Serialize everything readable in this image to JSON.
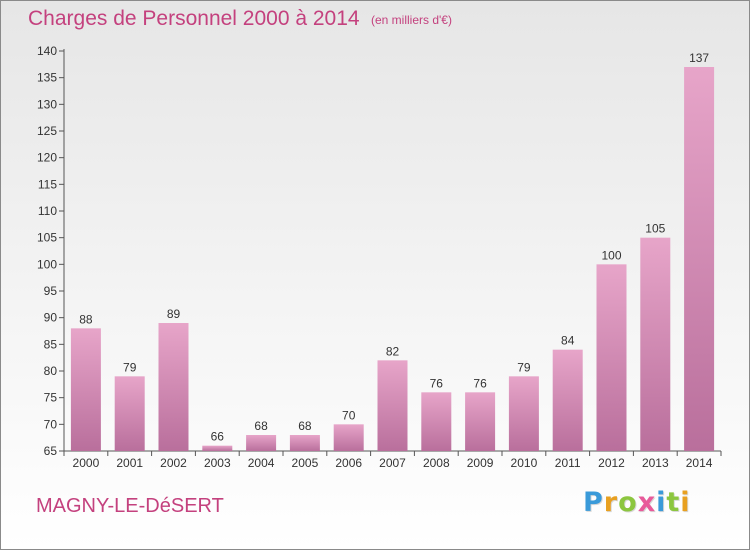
{
  "header": {
    "title": "Charges de Personnel 2000 à 2014",
    "unit": "(en milliers d'€)"
  },
  "footer": {
    "commune": "MAGNY-LE-DéSERT",
    "logo_letters": [
      "P",
      "r",
      "o",
      "x",
      "i",
      "t",
      "i"
    ],
    "logo_colors": [
      "#3a9ad9",
      "#e8a020",
      "#8cc63f",
      "#e85a9a",
      "#3a9ad9",
      "#8cc63f",
      "#e8a020"
    ]
  },
  "colors": {
    "bar_top": "#e7a5c9",
    "bar_bottom": "#b96f9c",
    "text_accent": "#c4417e",
    "axis": "#555555"
  },
  "chart_data": {
    "type": "bar",
    "title": "Charges de Personnel 2000 à 2014",
    "xlabel": "",
    "ylabel": "",
    "categories": [
      "2000",
      "2001",
      "2002",
      "2003",
      "2004",
      "2005",
      "2006",
      "2007",
      "2008",
      "2009",
      "2010",
      "2011",
      "2012",
      "2013",
      "2014"
    ],
    "values": [
      88,
      79,
      89,
      66,
      68,
      68,
      70,
      82,
      76,
      76,
      79,
      84,
      100,
      105,
      137
    ],
    "ylim": [
      65,
      140
    ],
    "yticks": [
      65,
      70,
      75,
      80,
      85,
      90,
      95,
      100,
      105,
      110,
      115,
      120,
      125,
      130,
      135,
      140
    ],
    "grid": false,
    "data_labels": true
  }
}
